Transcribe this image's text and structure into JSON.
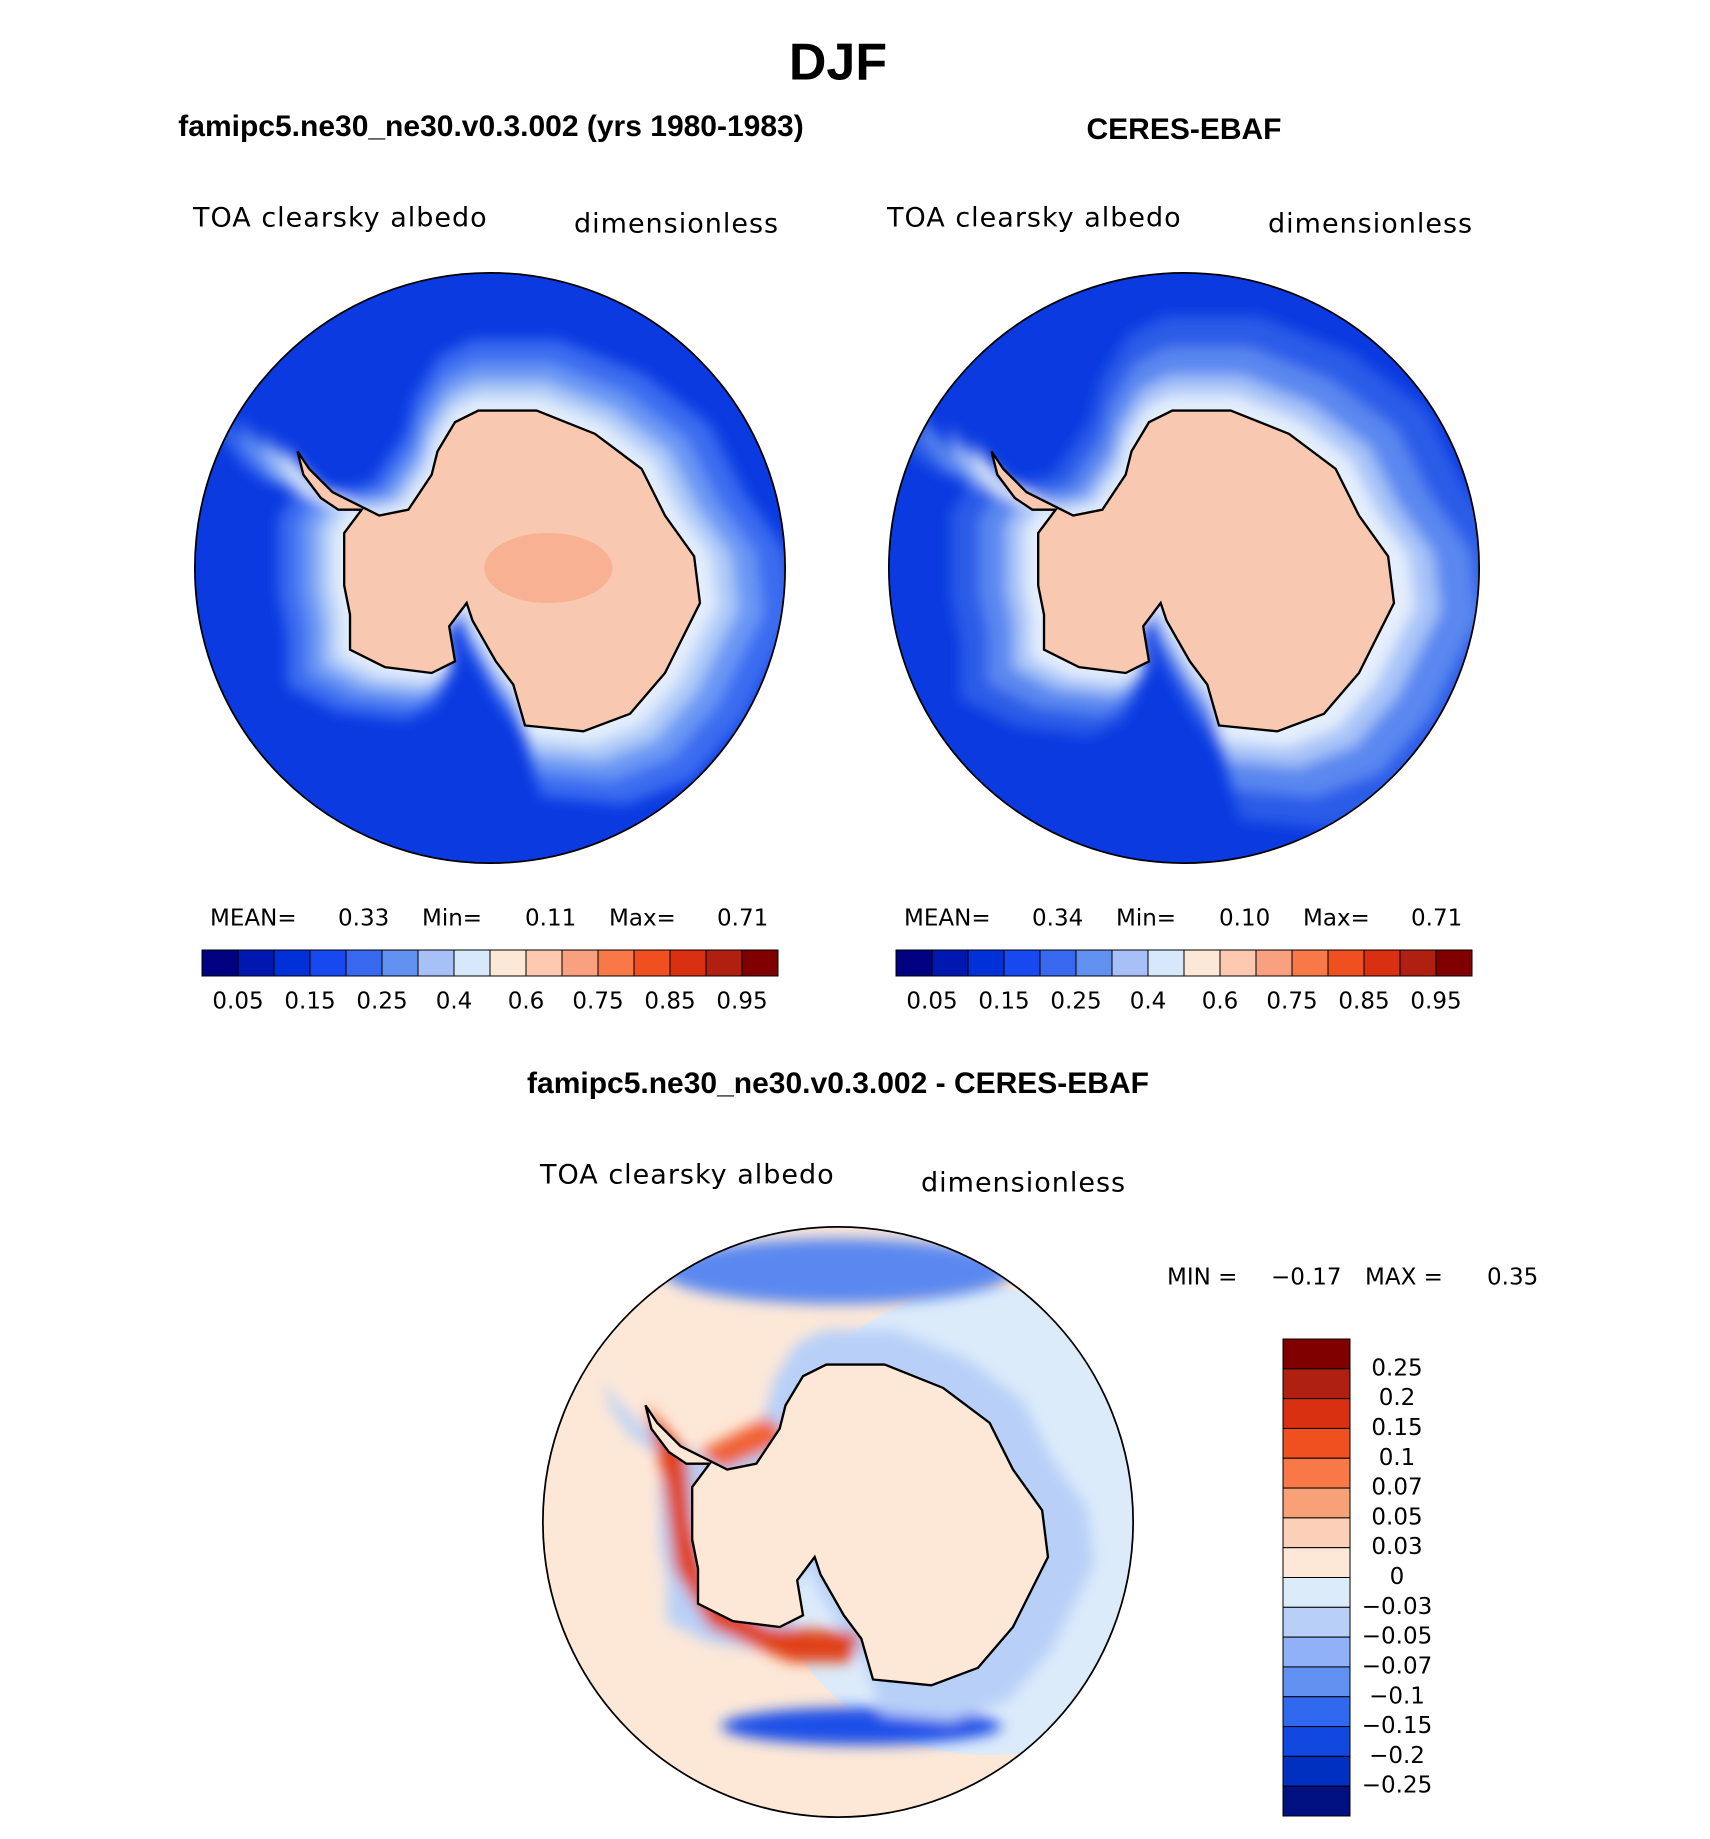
{
  "title": "DJF",
  "panels": [
    {
      "title": "famipc5.ne30_ne30.v0.3.002 (yrs 1980-1983)",
      "variable": "TOA clearsky albedo",
      "units": "dimensionless",
      "stats": [
        {
          "label": "MEAN=",
          "value": "0.33"
        },
        {
          "label": "Min=",
          "value": "0.11"
        },
        {
          "label": "Max=",
          "value": "0.71"
        }
      ],
      "colorbar": {
        "colors": [
          "#000080",
          "#0018b0",
          "#0030d8",
          "#1848f0",
          "#3868f0",
          "#6090f0",
          "#a8c0f8",
          "#d8e8fc",
          "#fde8d8",
          "#fcc8b0",
          "#f8a080",
          "#f87848",
          "#f05020",
          "#d83010",
          "#b02010",
          "#800000"
        ],
        "labels": [
          "0.05",
          "0.15",
          "0.25",
          "0.4",
          "0.6",
          "0.75",
          "0.85",
          "0.95"
        ]
      }
    },
    {
      "title": "CERES-EBAF",
      "variable": "TOA clearsky albedo",
      "units": "dimensionless",
      "stats": [
        {
          "label": "MEAN=",
          "value": "0.34"
        },
        {
          "label": "Min=",
          "value": "0.10"
        },
        {
          "label": "Max=",
          "value": "0.71"
        }
      ],
      "colorbar": {
        "colors": [
          "#000080",
          "#0018b0",
          "#0030d8",
          "#1848f0",
          "#3868f0",
          "#6090f0",
          "#a8c0f8",
          "#d8e8fc",
          "#fde8d8",
          "#fcc8b0",
          "#f8a080",
          "#f87848",
          "#f05020",
          "#d83010",
          "#b02010",
          "#800000"
        ],
        "labels": [
          "0.05",
          "0.15",
          "0.25",
          "0.4",
          "0.6",
          "0.75",
          "0.85",
          "0.95"
        ]
      }
    }
  ],
  "difference": {
    "title": "famipc5.ne30_ne30.v0.3.002 - CERES-EBAF",
    "variable": "TOA clearsky albedo",
    "units": "dimensionless",
    "stats": [
      {
        "label": "MIN =",
        "value": "−0.17"
      },
      {
        "label": "MAX =",
        "value": "0.35"
      }
    ],
    "colorbar": {
      "colors": [
        "#800000",
        "#b02010",
        "#d83010",
        "#f05020",
        "#f87848",
        "#f8a078",
        "#fcd0b8",
        "#fde8d8",
        "#dcebfa",
        "#b8d0f8",
        "#90b0f8",
        "#6090f0",
        "#3068f0",
        "#1048e0",
        "#0030c0",
        "#001080"
      ],
      "labels": [
        "0.25",
        "0.2",
        "0.15",
        "0.1",
        "0.07",
        "0.05",
        "0.03",
        "0",
        "−0.03",
        "−0.05",
        "−0.07",
        "−0.1",
        "−0.15",
        "−0.2",
        "−0.25"
      ]
    }
  }
}
